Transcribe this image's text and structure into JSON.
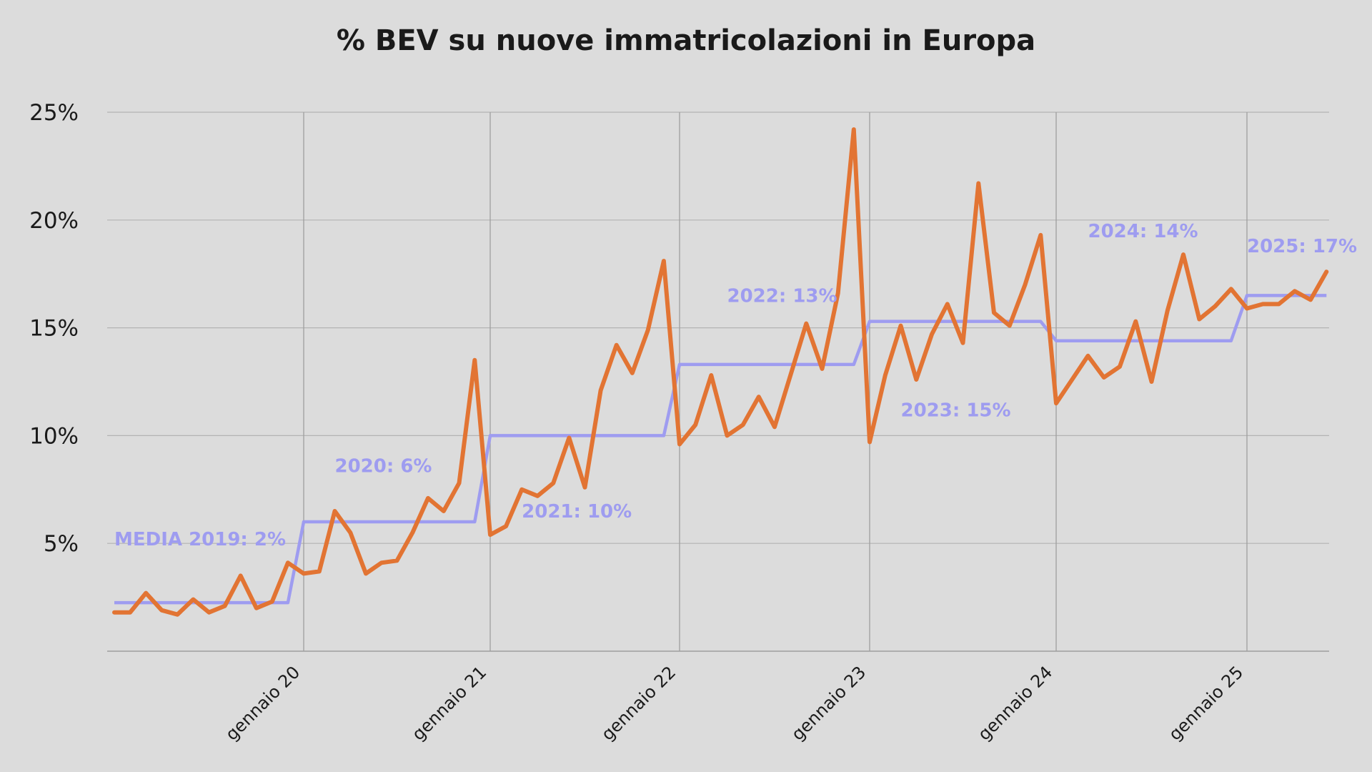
{
  "chart_data": {
    "type": "line",
    "title": "% BEV su nuove immatricolazioni in Europa",
    "xlabel": "",
    "ylabel": "",
    "ylim": [
      0,
      25
    ],
    "grid": true,
    "y_ticks": [
      "25%",
      "20%",
      "15%",
      "10%",
      "5%"
    ],
    "x_ticks": [
      "gennaio 20",
      "gennaio 21",
      "gennaio 22",
      "gennaio 23",
      "gennaio 24",
      "gennaio 25"
    ],
    "x_start": "2019-01",
    "series": [
      {
        "color": "#E27433",
        "values": [
          1.8,
          1.8,
          2.7,
          1.9,
          1.7,
          2.4,
          1.8,
          2.1,
          3.5,
          2.0,
          2.3,
          4.1,
          3.6,
          3.7,
          6.5,
          5.5,
          3.6,
          4.1,
          4.2,
          5.5,
          7.1,
          6.5,
          7.8,
          13.5,
          5.4,
          5.8,
          7.5,
          7.2,
          7.8,
          9.9,
          7.6,
          12.1,
          14.2,
          12.9,
          14.9,
          18.1,
          9.6,
          10.5,
          12.8,
          10.0,
          10.5,
          11.8,
          10.4,
          12.8,
          15.2,
          13.1,
          16.6,
          24.2,
          9.7,
          12.8,
          15.1,
          12.6,
          14.7,
          16.1,
          14.3,
          21.7,
          15.7,
          15.1,
          17.0,
          19.3,
          11.5,
          12.6,
          13.7,
          12.7,
          13.2,
          15.3,
          12.5,
          15.8,
          18.4,
          15.4,
          16.0,
          16.8,
          15.9,
          16.1,
          16.1,
          16.7,
          16.3,
          17.6
        ]
      },
      {
        "color": "#9E9CF0",
        "segments": [
          {
            "year": 2019,
            "value": 2.25
          },
          {
            "year": 2020,
            "value": 6.0
          },
          {
            "year": 2021,
            "value": 10.0
          },
          {
            "year": 2022,
            "value": 13.3
          },
          {
            "year": 2023,
            "value": 15.3
          },
          {
            "year": 2024,
            "value": 14.4
          },
          {
            "year": 2025,
            "value": 16.5
          }
        ]
      }
    ],
    "annotations": [
      {
        "text": "MEDIA 2019: 2%",
        "x": "2019-01",
        "y": 4.9
      },
      {
        "text": "2020: 6%",
        "x": "2020-03",
        "y": 8.3
      },
      {
        "text": "2021: 10%",
        "x": "2021-03",
        "y": 6.2
      },
      {
        "text": "2022: 13%",
        "x": "2022-04",
        "y": 16.2
      },
      {
        "text": "2023: 15%",
        "x": "2023-03",
        "y": 10.9
      },
      {
        "text": "2024: 14%",
        "x": "2024-03",
        "y": 19.2
      },
      {
        "text": "2025: 17%",
        "x": "2025-01",
        "y": 18.5
      }
    ],
    "colors": {
      "actual": "#E27433",
      "average": "#9E9CF0",
      "grid": "#b3b3b3",
      "axis": "#9e9e9e",
      "annotation": "#9E9CF0"
    }
  }
}
